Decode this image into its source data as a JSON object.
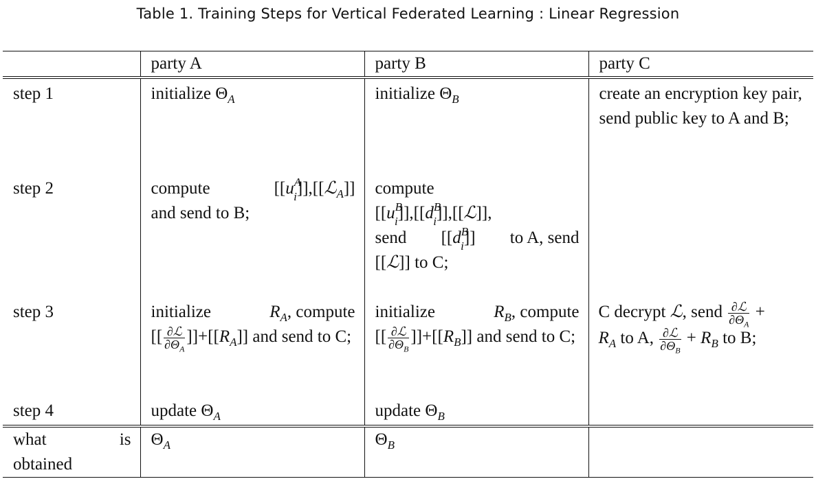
{
  "caption": "Table 1. Training Steps for Vertical Federated Learning : Linear Regression",
  "headers": [
    "",
    "party A",
    "party B",
    "party C"
  ],
  "rows": {
    "step1": {
      "label": "step 1",
      "a_text": "initialize ",
      "b_text": "initialize ",
      "c_text": "create an encryption key pair, send public key to A and B;"
    },
    "step2": {
      "label": "step 2",
      "a_text1": "compute",
      "a_text2": "and send to B;",
      "b_text1": "compute",
      "b_send1": "send",
      "b_toA": "to A, send",
      "b_toC": "to C;"
    },
    "step3": {
      "label": "step 3",
      "a_init": "initialize",
      "a_compute": ", compute",
      "a_send": "and send to C;",
      "b_init": "initialize",
      "b_compute": ", compute",
      "b_send": "and send to C;",
      "c_decrypt": "C decrypt",
      "c_send": ", send",
      "c_toA": "to A,",
      "c_toB": "to B;"
    },
    "step4": {
      "label": "step 4",
      "a_text": "update ",
      "b_text": "update "
    },
    "result": {
      "label_what": "what",
      "label_is": "is",
      "label_obtained": "obtained"
    }
  }
}
